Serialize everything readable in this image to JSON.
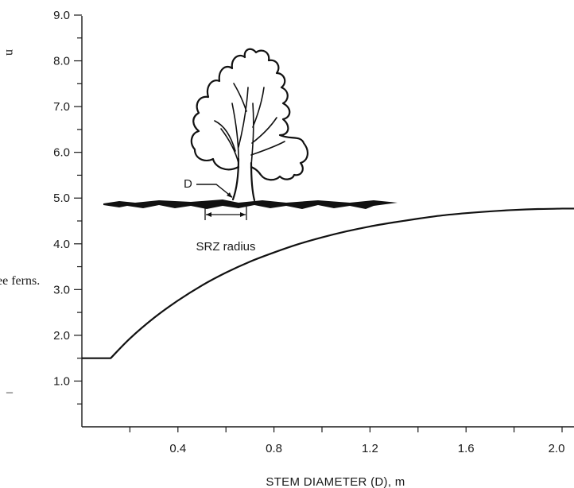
{
  "chart_data": {
    "type": "line",
    "title": "",
    "xlabel": "STEM DIAMETER (D), m",
    "ylabel": "",
    "xlim": [
      0,
      2.0
    ],
    "ylim": [
      0,
      9.0
    ],
    "x_ticks": [
      "0.4",
      "0.8",
      "1.2",
      "1.6",
      "2.0"
    ],
    "y_ticks": [
      "1.0",
      "2.0",
      "3.0",
      "4.0",
      "5.0",
      "6.0",
      "7.0",
      "8.0",
      "9.0"
    ],
    "series": [
      {
        "x": [
          0.0,
          0.12,
          0.2,
          0.3,
          0.4,
          0.5,
          0.6,
          0.7,
          0.8,
          0.9,
          1.0,
          1.1,
          1.2,
          1.3,
          1.4,
          1.5,
          1.6,
          1.7,
          1.8,
          1.9,
          2.0
        ],
        "y": [
          1.5,
          1.5,
          1.93,
          2.38,
          2.76,
          3.09,
          3.37,
          3.61,
          3.81,
          3.99,
          4.14,
          4.27,
          4.38,
          4.47,
          4.55,
          4.62,
          4.67,
          4.71,
          4.74,
          4.76,
          4.77
        ]
      }
    ],
    "annotations": {
      "d_label": "D",
      "srz_label": "SRZ radius"
    },
    "edge_fragments": {
      "top_left": "n",
      "middle_left": "ee ferns.",
      "bottom_left": "–"
    }
  }
}
